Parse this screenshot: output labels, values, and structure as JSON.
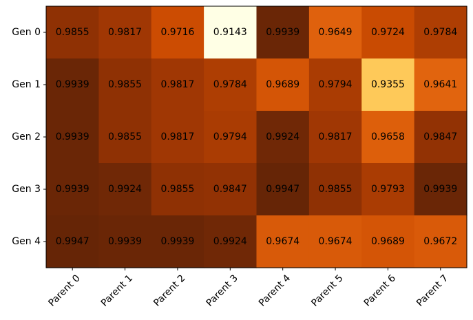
{
  "chart_data": {
    "type": "heatmap",
    "title": "",
    "xlabel": "",
    "ylabel": "",
    "x_categories": [
      "Parent 0",
      "Parent 1",
      "Parent 2",
      "Parent 3",
      "Parent 4",
      "Parent 5",
      "Parent 6",
      "Parent 7"
    ],
    "y_categories": [
      "Gen 0",
      "Gen 1",
      "Gen 2",
      "Gen 3",
      "Gen 4"
    ],
    "values": [
      [
        0.9855,
        0.9817,
        0.9716,
        0.9143,
        0.9939,
        0.9649,
        0.9724,
        0.9784
      ],
      [
        0.9939,
        0.9855,
        0.9817,
        0.9784,
        0.9689,
        0.9794,
        0.9355,
        0.9641
      ],
      [
        0.9939,
        0.9855,
        0.9817,
        0.9794,
        0.9924,
        0.9817,
        0.9658,
        0.9847
      ],
      [
        0.9939,
        0.9924,
        0.9855,
        0.9847,
        0.9947,
        0.9855,
        0.9793,
        0.9939
      ],
      [
        0.9947,
        0.9939,
        0.9939,
        0.9924,
        0.9674,
        0.9674,
        0.9689,
        0.9672
      ]
    ],
    "cell_labels": [
      [
        "0.9855",
        "0.9817",
        "0.9716",
        "0.9143",
        "0.9939",
        "0.9649",
        "0.9724",
        "0.9784"
      ],
      [
        "0.9939",
        "0.9855",
        "0.9817",
        "0.9784",
        "0.9689",
        "0.9794",
        "0.9355",
        "0.9641"
      ],
      [
        "0.9939",
        "0.9855",
        "0.9817",
        "0.9794",
        "0.9924",
        "0.9817",
        "0.9658",
        "0.9847"
      ],
      [
        "0.9939",
        "0.9924",
        "0.9855",
        "0.9847",
        "0.9947",
        "0.9855",
        "0.9793",
        "0.9939"
      ],
      [
        "0.9947",
        "0.9939",
        "0.9939",
        "0.9924",
        "0.9674",
        "0.9674",
        "0.9689",
        "0.9672"
      ]
    ],
    "colormap": "YlOrBr_r",
    "colormap_stops": [
      "#FFFFE5",
      "#FEE391",
      "#FEC44F",
      "#FE9929",
      "#EC7014",
      "#CC4C02",
      "#993404",
      "#662506"
    ],
    "grid": false,
    "legend": "none"
  }
}
